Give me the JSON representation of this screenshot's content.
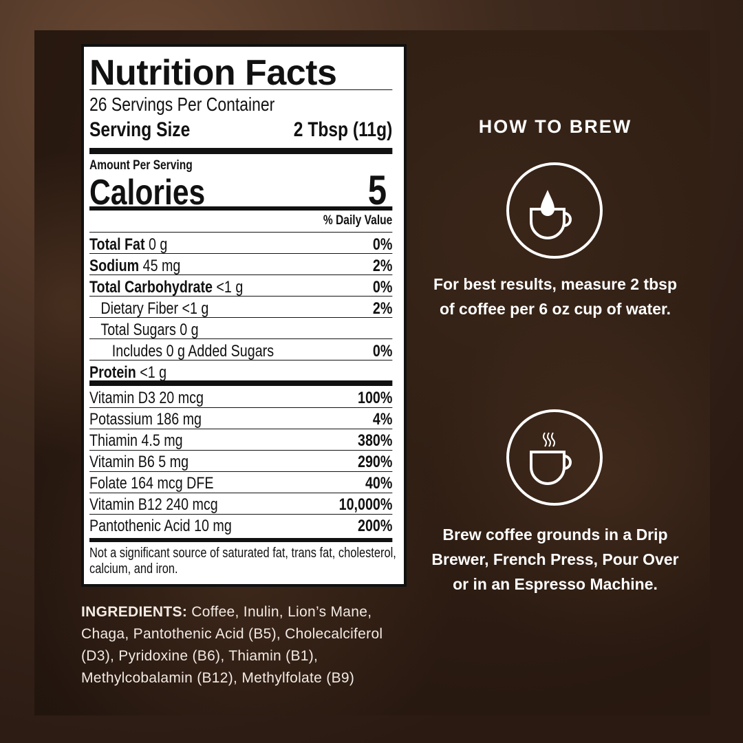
{
  "label": {
    "title": "Nutrition Facts",
    "servings": "26 Servings Per Container",
    "serving_size_label": "Serving Size",
    "serving_size_value": "2 Tbsp (11g)",
    "amount_per_serving": "Amount Per Serving",
    "calories_label": "Calories",
    "calories_value": "5",
    "dv_header": "% Daily Value",
    "nutrients": [
      {
        "name": "Total Fat",
        "amount": "0 g",
        "dv": "0%"
      },
      {
        "name": "Sodium",
        "amount": "45 mg",
        "dv": "2%"
      },
      {
        "name": "Total Carbohydrate",
        "amount": "<1 g",
        "dv": "0%"
      },
      {
        "name": "Dietary Fiber <1 g",
        "amount": "",
        "dv": "2%"
      },
      {
        "name": "Total Sugars 0 g",
        "amount": "",
        "dv": ""
      },
      {
        "name": "Includes 0 g Added Sugars",
        "amount": "",
        "dv": "0%"
      },
      {
        "name": "Protein",
        "amount": "<1 g",
        "dv": ""
      }
    ],
    "vitamins": [
      {
        "name": "Vitamin D3 20 mcg",
        "dv": "100%"
      },
      {
        "name": "Potassium 186 mg",
        "dv": "4%"
      },
      {
        "name": "Thiamin 4.5 mg",
        "dv": "380%"
      },
      {
        "name": "Vitamin B6 5 mg",
        "dv": "290%"
      },
      {
        "name": "Folate 164 mcg DFE",
        "dv": "40%"
      },
      {
        "name": "Vitamin B12 240 mcg",
        "dv": "10,000%"
      },
      {
        "name": "Pantothenic Acid 10 mg",
        "dv": "200%"
      }
    ],
    "footnote": "Not a significant source of saturated fat, trans fat, cholesterol, calcium, and iron."
  },
  "ingredients": {
    "label": "INGREDIENTS:",
    "text": " Coffee, Inulin, Lion’s Mane, Chaga, Pantothenic Acid (B5), Cholecalciferol (D3), Pyridoxine (B6), Thiamin (B1), Methylcobalamin (B12), Methylfolate (B9)"
  },
  "brew": {
    "heading": "HOW TO BREW",
    "step1_icon": "cup-water-drop-icon",
    "step1_text": "For best results, measure 2 tbsp of coffee per 6 oz cup of water.",
    "step2_icon": "steaming-cup-icon",
    "step2_text": "Brew coffee grounds in a Drip Brewer, French Press, Pour Over or in an Espresso Machine."
  }
}
